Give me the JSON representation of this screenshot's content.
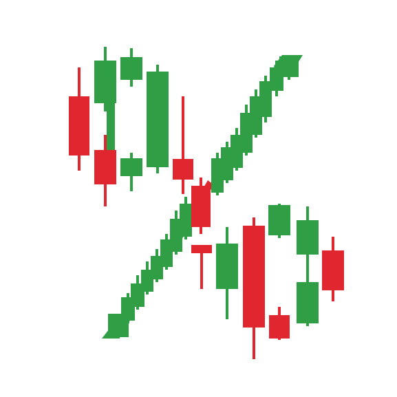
{
  "image": {
    "subject": "percent-sign-candlestick-logo",
    "background": "#ffffff"
  },
  "colors": {
    "bullish": "#2f9e44",
    "bearish": "#e0262f"
  },
  "icons": {
    "logo": "percent-sign-icon",
    "element": "candlestick-icon"
  },
  "elements": {
    "top_ring": {
      "name": "percent-top-ring",
      "candle_count": 8
    },
    "slash": {
      "name": "percent-slash",
      "candle_count": 19
    },
    "bottom_ring": {
      "name": "percent-bottom-ring",
      "candle_count": 8
    }
  }
}
